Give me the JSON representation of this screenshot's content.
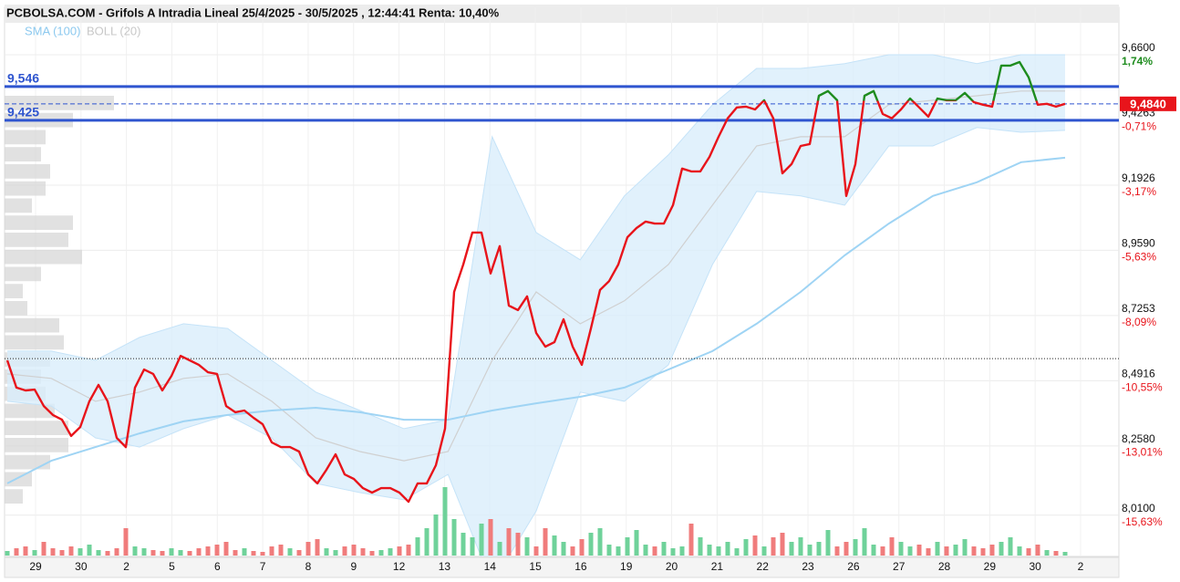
{
  "chart_data": {
    "type": "line",
    "title": "PCBOLSA.COM - Grifols A Intradia Lineal 25/4/2025 - 30/5/2025 , 12:44:41 Renta: 10,40%",
    "categories": [
      "29",
      "30",
      "2",
      "5",
      "6",
      "7",
      "8",
      "9",
      "12",
      "13",
      "14",
      "15",
      "16",
      "19",
      "20",
      "21",
      "22",
      "23",
      "26",
      "27",
      "28",
      "29",
      "30",
      "2"
    ],
    "ylim": [
      7.862,
      9.83
    ],
    "yticks": [
      {
        "value": 9.66,
        "label": "9,6600"
      },
      {
        "value": 9.4263,
        "label": "9,4263"
      },
      {
        "value": 9.1926,
        "label": "9,1926"
      },
      {
        "value": 8.959,
        "label": "8,9590"
      },
      {
        "value": 8.7253,
        "label": "8,7253"
      },
      {
        "value": 8.4916,
        "label": "8,4916"
      },
      {
        "value": 8.258,
        "label": "8,2580"
      },
      {
        "value": 8.01,
        "label": "8,0100"
      }
    ],
    "y2lim": [
      -17.19,
      3.53
    ],
    "y2ticks": [
      {
        "value": 1.74,
        "label": "1,74%"
      },
      {
        "value": -0.71,
        "label": "-0,71%"
      },
      {
        "value": -3.17,
        "label": "-3,17%"
      },
      {
        "value": -5.63,
        "label": "-5,63%"
      },
      {
        "value": -8.09,
        "label": "-8,09%"
      },
      {
        "value": -10.55,
        "label": "-10,55%"
      },
      {
        "value": -13.01,
        "label": "-13,01%"
      },
      {
        "value": -15.63,
        "label": "-15,63%"
      }
    ],
    "grid": true,
    "price": {
      "color": "#e8141b",
      "color_up": "#1e8c1e",
      "values": [
        8.565,
        8.467,
        8.457,
        8.46,
        8.401,
        8.369,
        8.352,
        8.294,
        8.326,
        8.418,
        8.477,
        8.418,
        8.287,
        8.254,
        8.467,
        8.532,
        8.516,
        8.457,
        8.509,
        8.581,
        8.565,
        8.549,
        8.522,
        8.516,
        8.401,
        8.379,
        8.385,
        8.359,
        8.336,
        8.271,
        8.254,
        8.254,
        8.238,
        8.156,
        8.124,
        8.173,
        8.228,
        8.156,
        8.14,
        8.107,
        8.091,
        8.107,
        8.107,
        8.091,
        8.058,
        8.124,
        8.124,
        8.189,
        8.32,
        8.81,
        8.908,
        9.023,
        9.023,
        8.876,
        8.974,
        8.761,
        8.745,
        8.794,
        8.663,
        8.614,
        8.63,
        8.712,
        8.614,
        8.549,
        8.679,
        8.817,
        8.849,
        8.908,
        9.006,
        9.039,
        9.062,
        9.055,
        9.055,
        9.121,
        9.252,
        9.242,
        9.242,
        9.294,
        9.366,
        9.432,
        9.471,
        9.474,
        9.464,
        9.497,
        9.432,
        9.235,
        9.268,
        9.333,
        9.34,
        9.513,
        9.53,
        9.497,
        9.154,
        9.268,
        9.513,
        9.53,
        9.448,
        9.432,
        9.464,
        9.503,
        9.471,
        9.438,
        9.503,
        9.497,
        9.497,
        9.523,
        9.49,
        9.481,
        9.474,
        9.621,
        9.621,
        9.634,
        9.579,
        9.481,
        9.484,
        9.474,
        9.484
      ]
    },
    "indicators": [
      {
        "name": "SMA (100)",
        "color": "#9fd4f4",
        "values": [
          8.124,
          8.205,
          8.254,
          8.303,
          8.346,
          8.369,
          8.385,
          8.395,
          8.379,
          8.352,
          8.352,
          8.385,
          8.411,
          8.434,
          8.467,
          8.532,
          8.598,
          8.696,
          8.81,
          8.941,
          9.055,
          9.154,
          9.203,
          9.275,
          9.291
        ]
      },
      {
        "name": "BOLL (20)",
        "color": "#d0d0d0",
        "fill": "#d9edfb",
        "upper": [
          8.598,
          8.598,
          8.565,
          8.647,
          8.696,
          8.679,
          8.565,
          8.451,
          8.385,
          8.32,
          8.352,
          9.366,
          9.023,
          8.925,
          9.154,
          9.301,
          9.481,
          9.611,
          9.611,
          9.628,
          9.66,
          9.66,
          9.628,
          9.66,
          9.66
        ],
        "middle": [
          8.516,
          8.5,
          8.418,
          8.451,
          8.5,
          8.516,
          8.418,
          8.287,
          8.238,
          8.205,
          8.238,
          8.565,
          8.81,
          8.696,
          8.778,
          8.908,
          9.121,
          9.333,
          9.366,
          9.366,
          9.481,
          9.497,
          9.513,
          9.53,
          9.53
        ],
        "lower": [
          8.418,
          8.401,
          8.287,
          8.254,
          8.32,
          8.369,
          8.287,
          8.124,
          8.091,
          8.065,
          8.156,
          7.764,
          8.025,
          8.451,
          8.418,
          8.549,
          8.908,
          9.17,
          9.154,
          9.121,
          9.333,
          9.333,
          9.399,
          9.382,
          9.389
        ]
      }
    ],
    "hlines": [
      {
        "value": 9.546,
        "label": "9,546",
        "color": "#2f55cf"
      },
      {
        "value": 9.425,
        "label": "9,425",
        "color": "#2f55cf"
      }
    ],
    "last_price": {
      "value": 9.484,
      "label": "9,4840",
      "color": "#e8141b"
    },
    "reference_line": 8.571,
    "volume": {
      "color_up": "#6fd29a",
      "color_down": "#f07c7c",
      "values": [
        5,
        8,
        10,
        6,
        15,
        8,
        6,
        10,
        8,
        12,
        6,
        5,
        8,
        30,
        10,
        8,
        6,
        5,
        8,
        6,
        5,
        8,
        10,
        12,
        15,
        6,
        8,
        5,
        4,
        10,
        12,
        8,
        6,
        15,
        18,
        8,
        6,
        10,
        12,
        8,
        5,
        6,
        8,
        10,
        12,
        20,
        30,
        45,
        75,
        40,
        25,
        20,
        35,
        40,
        15,
        30,
        25,
        20,
        10,
        30,
        22,
        15,
        10,
        18,
        25,
        30,
        12,
        10,
        20,
        28,
        12,
        10,
        15,
        8,
        10,
        35,
        20,
        12,
        10,
        15,
        8,
        18,
        22,
        10,
        20,
        25,
        15,
        20,
        12,
        15,
        28,
        10,
        15,
        18,
        30,
        12,
        10,
        20,
        15,
        10,
        12,
        8,
        15,
        10,
        12,
        18,
        10,
        8,
        12,
        15,
        20,
        10,
        8,
        12,
        6,
        5,
        4
      ]
    },
    "volume_profile": {
      "color": "#d4d4d4",
      "values": [
        120,
        75,
        45,
        40,
        50,
        45,
        30,
        75,
        70,
        85,
        40,
        20,
        25,
        60,
        65,
        50,
        40,
        45,
        55,
        70,
        70,
        50,
        30,
        20
      ]
    }
  }
}
